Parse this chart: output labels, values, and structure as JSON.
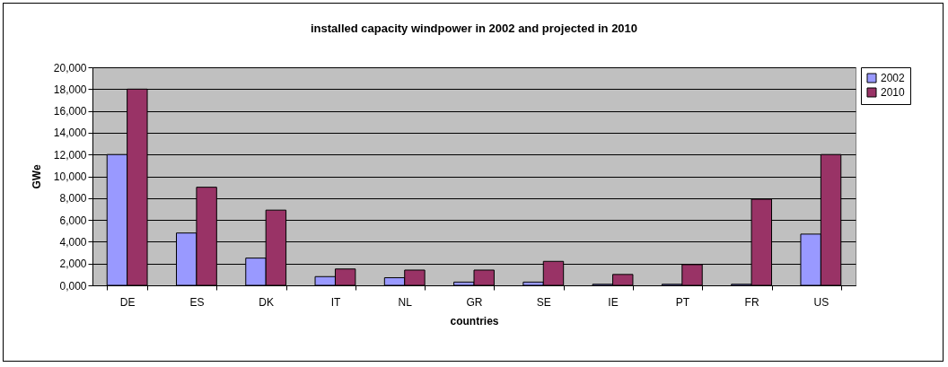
{
  "chart_data": {
    "type": "bar",
    "title": "installed capacity windpower in 2002 and projected in 2010",
    "xlabel": "countries",
    "ylabel": "GWe",
    "categories": [
      "DE",
      "ES",
      "DK",
      "IT",
      "NL",
      "GR",
      "SE",
      "IE",
      "PT",
      "FR",
      "US"
    ],
    "series": [
      {
        "name": "2002",
        "color": "#9999ff",
        "values": [
          12000,
          4800,
          2500,
          800,
          700,
          300,
          300,
          100,
          100,
          100,
          4700
        ]
      },
      {
        "name": "2010",
        "color": "#993366",
        "values": [
          18000,
          9000,
          6900,
          1500,
          1400,
          1400,
          2200,
          1000,
          1900,
          7900,
          12000
        ]
      }
    ],
    "ylim": [
      0,
      20000
    ],
    "yticks": [
      {
        "value": 0,
        "label": "0,000"
      },
      {
        "value": 2000,
        "label": "2,000"
      },
      {
        "value": 4000,
        "label": "4,000"
      },
      {
        "value": 6000,
        "label": "6,000"
      },
      {
        "value": 8000,
        "label": "8,000"
      },
      {
        "value": 10000,
        "label": "10,000"
      },
      {
        "value": 12000,
        "label": "12,000"
      },
      {
        "value": 14000,
        "label": "14,000"
      },
      {
        "value": 16000,
        "label": "16,000"
      },
      {
        "value": 18000,
        "label": "18,000"
      },
      {
        "value": 20000,
        "label": "20,000"
      }
    ],
    "grid": "y",
    "legend": "right"
  }
}
